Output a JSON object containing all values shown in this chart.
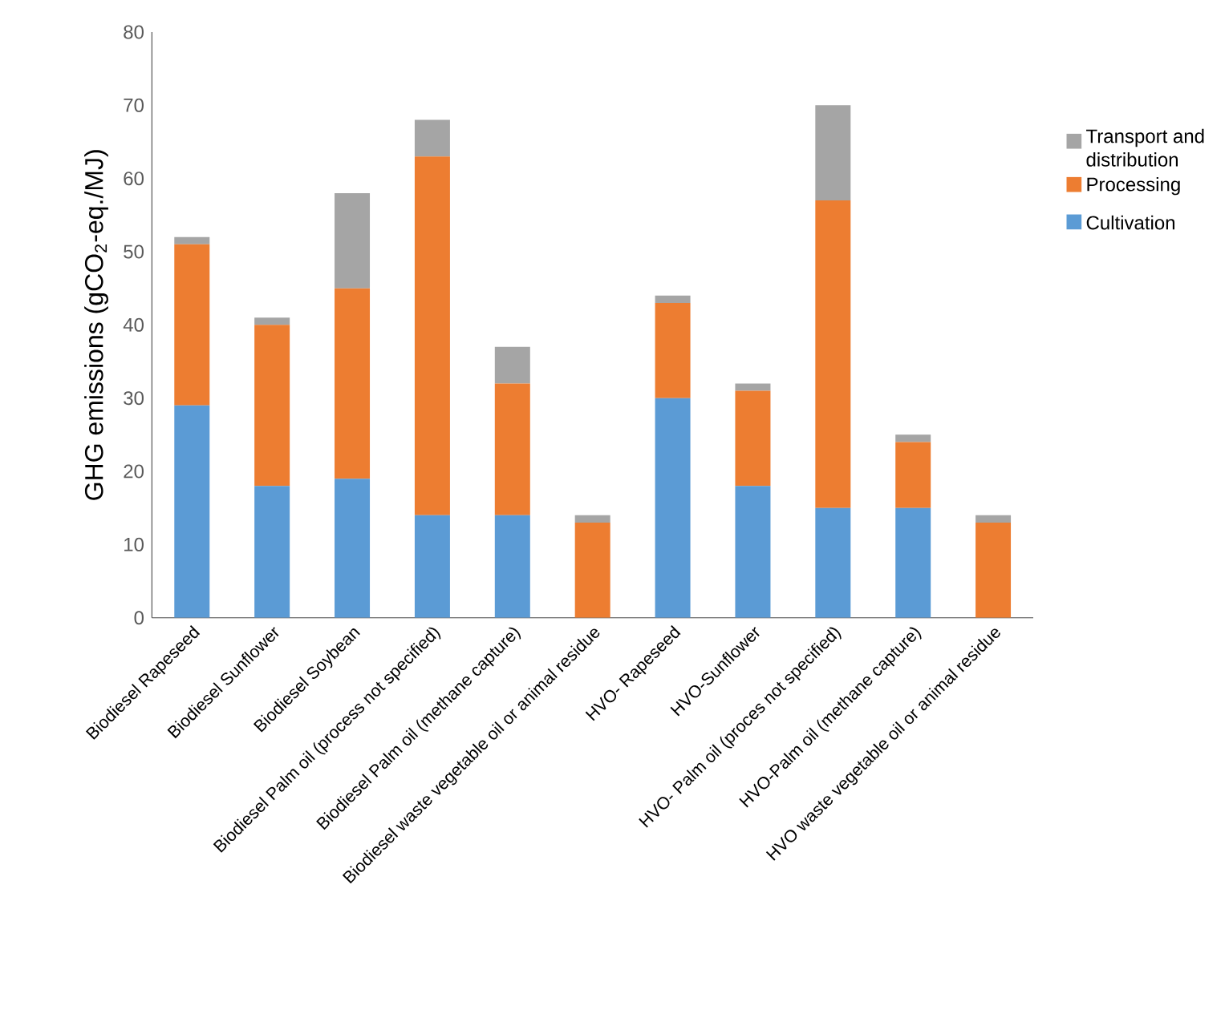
{
  "chart_data": {
    "type": "bar",
    "stacked": true,
    "ylabel": "GHG emissions (gCO$_{2}$-eq./MJ)",
    "categories": [
      "Biodiesel Rapeseed",
      "Biodiesel Sunflower",
      "Biodiesel Soybean",
      "Biodiesel Palm oil (process not specified)",
      "Biodiesel Palm oil (methane capture)",
      "Biodiesel waste vegetable oil or animal residue",
      "HVO- Rapeseed",
      "HVO-Sunflower",
      "HVO- Palm oil (proces not specified)",
      "HVO-Palm oil (methane capture)",
      "HVO waste vegetable oil or animal residue"
    ],
    "series": [
      {
        "name": "Cultivation",
        "color": "#5b9bd5",
        "values": [
          29,
          18,
          19,
          14,
          14,
          0,
          30,
          18,
          15,
          15,
          0
        ]
      },
      {
        "name": "Processing",
        "color": "#ed7d31",
        "values": [
          22,
          22,
          26,
          49,
          18,
          13,
          13,
          13,
          42,
          9,
          13
        ]
      },
      {
        "name": "Transport and distribution",
        "color": "#a5a5a5",
        "values": [
          1,
          1,
          13,
          5,
          5,
          1,
          1,
          1,
          13,
          1,
          1
        ]
      }
    ],
    "ylim": [
      0,
      80
    ],
    "yticks": [
      0,
      10,
      20,
      30,
      40,
      50,
      60,
      70,
      80
    ],
    "legend": "right"
  }
}
